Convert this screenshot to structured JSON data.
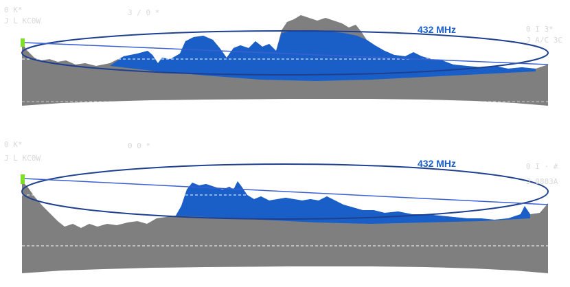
{
  "colors": {
    "terrain": "#7f7f7f",
    "obstruction": "#1a5fc8",
    "fresnel": "#1f3f8f",
    "los_line": "#3a5fd0",
    "station_marker": "#7ddf2a",
    "ref_line": "#ffffff",
    "label_faint": "#d8d8d8"
  },
  "panels": [
    {
      "frequency": "432 MHz",
      "left_station": {
        "line1": "0 K*",
        "line2": "J L KC0W"
      },
      "right_station": {
        "line1": "0 I 3* ",
        "line2": "J A/C 3C"
      },
      "distance_label": "3 / 0 *"
    },
    {
      "frequency": "432 MHz",
      "left_station": {
        "line1": "0 K*",
        "line2": "J L KC0W"
      },
      "right_station": {
        "line1": "0 I · #",
        "line2": "J 0883A"
      },
      "distance_label": "0 0 *"
    }
  ]
}
